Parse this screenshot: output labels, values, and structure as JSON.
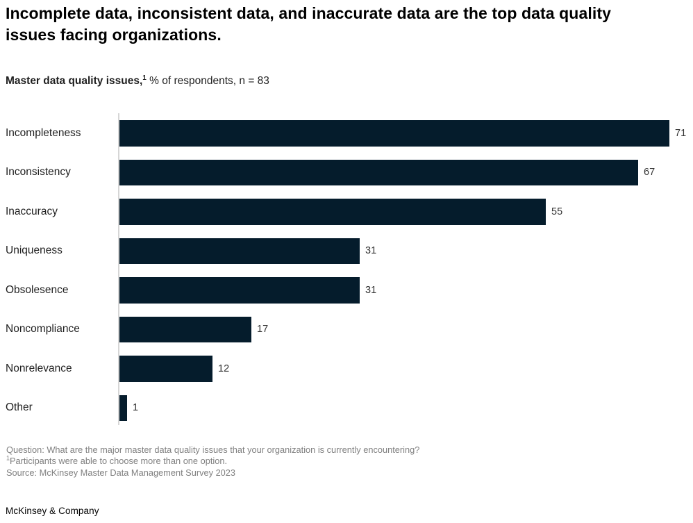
{
  "headline": "Incomplete data, inconsistent data, and inaccurate data are the top data quality issues facing organizations.",
  "subtitle": {
    "bold": "Master data quality issues,",
    "superscript": "1",
    "rest": " % of respondents, n = 83"
  },
  "chart_data": {
    "type": "bar",
    "orientation": "horizontal",
    "title": "Master data quality issues, % of respondents, n = 83",
    "categories": [
      "Incompleteness",
      "Inconsistency",
      "Inaccuracy",
      "Uniqueness",
      "Obsolesence",
      "Noncompliance",
      "Nonrelevance",
      "Other"
    ],
    "values": [
      71,
      67,
      55,
      31,
      31,
      17,
      12,
      1
    ],
    "xlim": [
      0,
      71
    ],
    "data_labels": true,
    "grid": false,
    "legend": false,
    "bar_color": "#051C2C",
    "axis_color": "#D6D6D6"
  },
  "footnotes": {
    "question": "Question: What are the major master data quality issues that your organization is currently encountering?",
    "note_superscript": "1",
    "note": "Participants were able to choose more than one option.",
    "source": "Source: McKinsey Master Data Management Survey 2023"
  },
  "branding": "McKinsey & Company"
}
